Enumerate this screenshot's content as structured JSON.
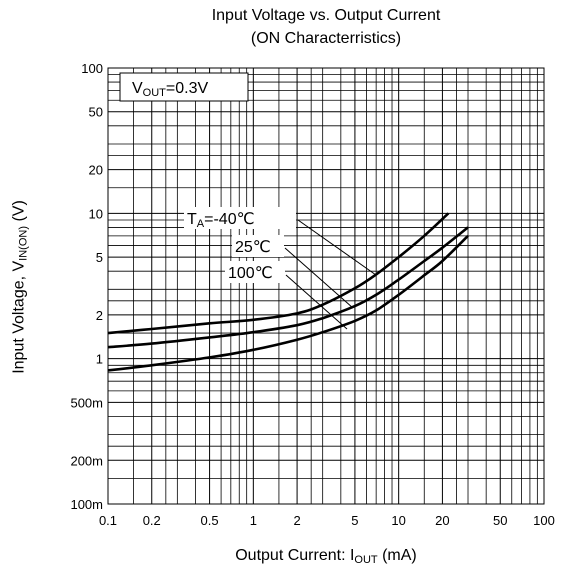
{
  "chart_data": {
    "type": "line",
    "title": "Input Voltage vs. Output Current",
    "subtitle": "(ON Characterristics)",
    "xlabel": {
      "text": "Output Current: I",
      "sub": "OUT",
      "suffix": " (mA)"
    },
    "ylabel": {
      "text": "Input Voltage, V",
      "sub": "IN(ON)",
      "suffix": " (V)"
    },
    "x_scale": "log",
    "y_scale": "log",
    "xlim": [
      0.1,
      100
    ],
    "ylim": [
      0.1,
      100
    ],
    "grid": true,
    "x_ticks": [
      {
        "v": 0.1,
        "label": "0.1"
      },
      {
        "v": 0.2,
        "label": "0.2"
      },
      {
        "v": 0.5,
        "label": "0.5"
      },
      {
        "v": 1,
        "label": "1"
      },
      {
        "v": 2,
        "label": "2"
      },
      {
        "v": 5,
        "label": "5"
      },
      {
        "v": 10,
        "label": "10"
      },
      {
        "v": 20,
        "label": "20"
      },
      {
        "v": 50,
        "label": "50"
      },
      {
        "v": 100,
        "label": "100"
      }
    ],
    "y_ticks": [
      {
        "v": 0.1,
        "label": "100m"
      },
      {
        "v": 0.2,
        "label": "200m"
      },
      {
        "v": 0.5,
        "label": "500m"
      },
      {
        "v": 1,
        "label": "1"
      },
      {
        "v": 2,
        "label": "2"
      },
      {
        "v": 5,
        "label": "5"
      },
      {
        "v": 10,
        "label": "10"
      },
      {
        "v": 20,
        "label": "20"
      },
      {
        "v": 50,
        "label": "50"
      },
      {
        "v": 100,
        "label": "100"
      }
    ],
    "condition": {
      "text": "V",
      "sub": "OUT",
      "suffix": "=0.3V"
    },
    "series": [
      {
        "label_main": "T",
        "label_sub": "A",
        "label_suffix": "=-40℃",
        "x": [
          0.1,
          0.2,
          0.5,
          1,
          2,
          3,
          5,
          7,
          10,
          15,
          22
        ],
        "y": [
          1.5,
          1.6,
          1.75,
          1.85,
          2.05,
          2.35,
          3.05,
          3.8,
          5.0,
          7.0,
          10.0
        ]
      },
      {
        "label_main": "",
        "label_sub": "",
        "label_suffix": "25℃",
        "x": [
          0.1,
          0.2,
          0.5,
          1,
          2,
          3,
          5,
          7,
          10,
          15,
          20,
          30
        ],
        "y": [
          1.2,
          1.27,
          1.4,
          1.52,
          1.7,
          1.9,
          2.3,
          2.75,
          3.5,
          4.7,
          5.8,
          8.0
        ]
      },
      {
        "label_main": "",
        "label_sub": "",
        "label_suffix": "100℃",
        "x": [
          0.1,
          0.2,
          0.5,
          1,
          2,
          3,
          5,
          7,
          10,
          15,
          20,
          30
        ],
        "y": [
          0.83,
          0.9,
          1.02,
          1.15,
          1.35,
          1.52,
          1.82,
          2.15,
          2.75,
          3.75,
          4.7,
          7.0
        ]
      }
    ]
  }
}
